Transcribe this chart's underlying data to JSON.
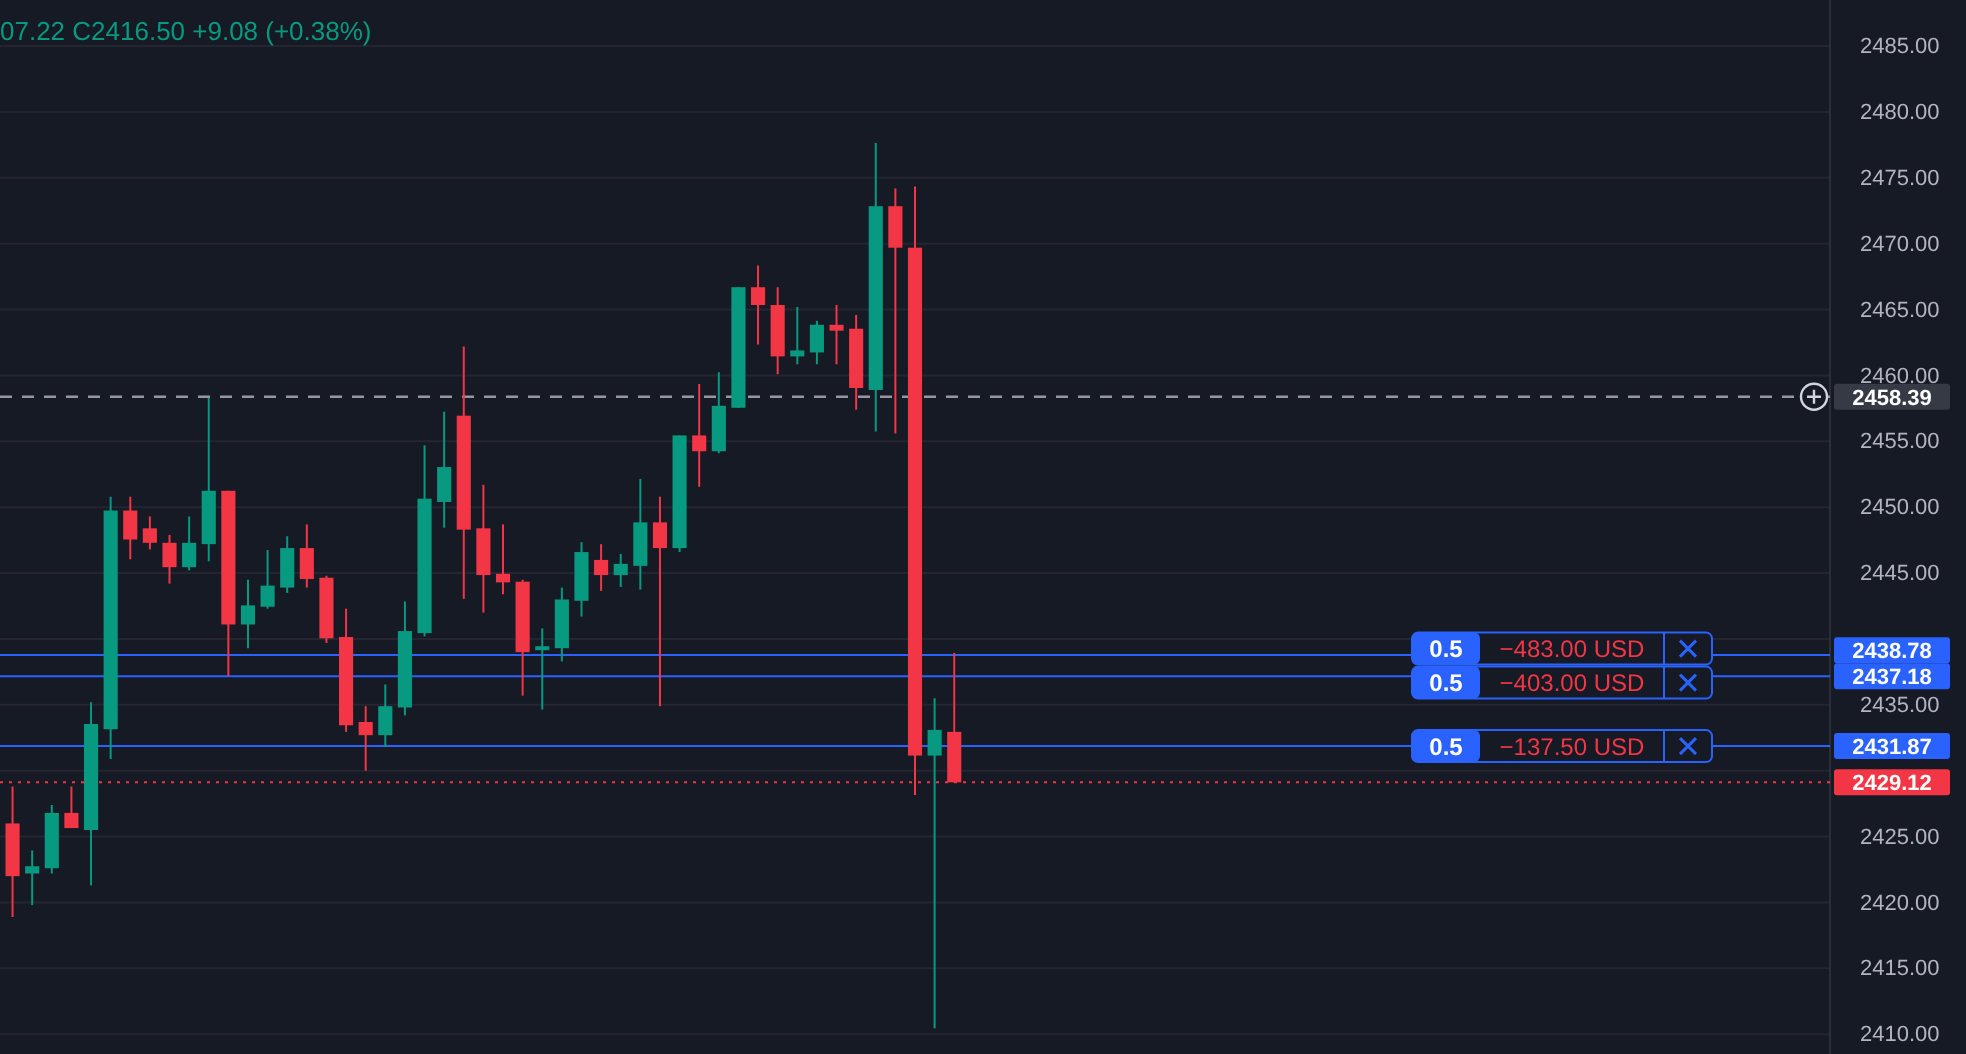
{
  "chart_data": {
    "type": "candlestick",
    "categories": [
      null,
      null,
      null,
      null,
      null,
      null,
      null,
      null,
      null,
      null,
      null,
      null,
      null,
      null,
      null,
      null,
      null,
      null,
      null,
      null,
      null,
      null,
      null,
      null,
      null,
      null,
      null,
      null,
      null,
      null,
      null,
      null,
      null,
      null,
      null,
      null,
      null,
      null,
      null,
      null,
      null,
      null,
      null,
      null,
      null,
      null,
      null,
      null,
      null,
      null,
      null,
      null,
      null,
      null,
      null,
      null,
      null,
      null,
      null,
      null,
      null,
      null,
      null,
      null,
      null,
      null,
      null,
      null,
      null,
      null,
      null,
      null,
      null,
      null,
      null,
      null,
      null,
      null,
      null,
      null,
      null,
      null,
      null,
      null,
      null,
      null,
      null,
      null,
      null,
      null,
      null,
      null,
      null
    ],
    "ohlc": [
      [
        2426.0,
        2428.8,
        2418.9,
        2422.0
      ],
      [
        2422.2,
        2423.95,
        2419.8,
        2422.75
      ],
      [
        2422.6,
        2427.4,
        2422.2,
        2426.8
      ],
      [
        2426.8,
        2428.8,
        2425.65,
        2425.65
      ],
      [
        2425.5,
        2435.2,
        2421.3,
        2433.55
      ],
      [
        2433.15,
        2450.8,
        2430.9,
        2449.75
      ],
      [
        2449.75,
        2450.8,
        2446.05,
        2447.55
      ],
      [
        2448.4,
        2449.3,
        2446.8,
        2447.3
      ],
      [
        2447.3,
        2447.9,
        2444.2,
        2445.45
      ],
      [
        2445.45,
        2449.3,
        2445.2,
        2447.3
      ],
      [
        2447.2,
        2458.3,
        2445.9,
        2451.25
      ],
      [
        2451.25,
        2451.25,
        2437.2,
        2441.1
      ],
      [
        2441.1,
        2444.5,
        2439.3,
        2442.55
      ],
      [
        2442.45,
        2446.75,
        2442.3,
        2444.05
      ],
      [
        2443.9,
        2447.8,
        2443.5,
        2446.9
      ],
      [
        2446.9,
        2448.7,
        2443.9,
        2444.55
      ],
      [
        2444.65,
        2444.8,
        2439.7,
        2440.05
      ],
      [
        2440.15,
        2442.3,
        2432.95,
        2433.45
      ],
      [
        2433.7,
        2434.9,
        2430.0,
        2432.7
      ],
      [
        2432.7,
        2436.55,
        2431.8,
        2434.9
      ],
      [
        2434.8,
        2442.85,
        2434.2,
        2440.6
      ],
      [
        2440.45,
        2454.7,
        2440.2,
        2450.65
      ],
      [
        2450.4,
        2457.25,
        2448.45,
        2453.05
      ],
      [
        2456.95,
        2462.2,
        2443.05,
        2448.3
      ],
      [
        2448.4,
        2451.7,
        2442.0,
        2444.85
      ],
      [
        2444.95,
        2448.7,
        2443.4,
        2444.3
      ],
      [
        2444.35,
        2444.5,
        2435.7,
        2439.0
      ],
      [
        2439.15,
        2440.8,
        2434.65,
        2439.45
      ],
      [
        2439.3,
        2443.9,
        2438.3,
        2443.0
      ],
      [
        2442.9,
        2447.35,
        2441.7,
        2446.6
      ],
      [
        2446.0,
        2447.2,
        2443.65,
        2444.85
      ],
      [
        2444.85,
        2446.45,
        2443.95,
        2445.7
      ],
      [
        2445.55,
        2452.15,
        2443.75,
        2448.85
      ],
      [
        2448.85,
        2450.8,
        2434.9,
        2446.9
      ],
      [
        2446.9,
        2455.45,
        2446.6,
        2455.45
      ],
      [
        2455.45,
        2459.35,
        2451.55,
        2454.25
      ],
      [
        2454.25,
        2460.25,
        2454.1,
        2457.7
      ],
      [
        2457.55,
        2466.7,
        2457.55,
        2466.7
      ],
      [
        2466.7,
        2468.35,
        2462.35,
        2465.35
      ],
      [
        2465.35,
        2466.7,
        2460.1,
        2461.45
      ],
      [
        2461.45,
        2465.2,
        2460.85,
        2461.9
      ],
      [
        2461.75,
        2464.15,
        2460.85,
        2463.85
      ],
      [
        2463.85,
        2465.35,
        2460.85,
        2463.4
      ],
      [
        2463.55,
        2464.6,
        2457.4,
        2459.05
      ],
      [
        2458.9,
        2477.65,
        2455.75,
        2472.85
      ],
      [
        2472.85,
        2474.2,
        2455.6,
        2469.7
      ],
      [
        2469.7,
        2474.35,
        2428.15,
        2431.15
      ],
      [
        2431.15,
        2435.5,
        2410.45,
        2433.1
      ],
      [
        2432.95,
        2438.95,
        2429.12,
        2429.12
      ],
      null,
      null,
      null,
      null,
      null,
      null,
      null,
      null,
      null,
      null,
      null,
      null,
      null,
      null,
      null,
      null,
      null,
      null,
      null,
      null,
      null,
      null,
      null,
      null,
      null,
      null,
      null,
      null,
      null,
      null,
      null,
      null,
      null,
      null,
      null,
      null,
      null,
      null,
      null,
      null,
      null,
      null,
      null,
      null
    ],
    "colors": [
      "#f23645",
      "#089981",
      "#089981",
      "#f23645",
      "#089981",
      "#089981",
      "#f23645",
      "#f23645",
      "#f23645",
      "#089981",
      "#089981",
      "#f23645",
      "#089981",
      "#089981",
      "#089981",
      "#f23645",
      "#f23645",
      "#f23645",
      "#f23645",
      "#089981",
      "#089981",
      "#089981",
      "#089981",
      "#f23645",
      "#f23645",
      "#f23645",
      "#f23645",
      "#089981",
      "#089981",
      "#089981",
      "#f23645",
      "#089981",
      "#089981",
      "#f23645",
      "#089981",
      "#f23645",
      "#089981",
      "#089981",
      "#f23645",
      "#f23645",
      "#089981",
      "#089981",
      "#f23645",
      "#f23645",
      "#089981",
      "#f23645",
      "#f23645",
      "#089981",
      "#f23645",
      null,
      null,
      null,
      null,
      null,
      null,
      null,
      null,
      null,
      null,
      null,
      null,
      null,
      null,
      null,
      null,
      null,
      null,
      null,
      null,
      null,
      null,
      null,
      null,
      null,
      null,
      null,
      null,
      null,
      null,
      null,
      null,
      null,
      null,
      null,
      null,
      null,
      null,
      null,
      null,
      null,
      null,
      null,
      null
    ],
    "ylim": [
      2408.5,
      2488.5
    ],
    "yticks": [
      {
        "value": 2410,
        "label": "2410.00"
      },
      {
        "value": 2415,
        "label": "2415.00"
      },
      {
        "value": 2420,
        "label": "2420.00"
      },
      {
        "value": 2425,
        "label": "2425.00"
      },
      {
        "value": 2430,
        "label": null
      },
      {
        "value": 2435,
        "label": "2435.00"
      },
      {
        "value": 2440,
        "label": null
      },
      {
        "value": 2445,
        "label": "2445.00"
      },
      {
        "value": 2450,
        "label": "2450.00"
      },
      {
        "value": 2455,
        "label": "2455.00"
      },
      {
        "value": 2460,
        "label": "2460.00"
      },
      {
        "value": 2465,
        "label": "2465.00"
      },
      {
        "value": 2470,
        "label": "2470.00"
      },
      {
        "value": 2475,
        "label": "2475.00"
      },
      {
        "value": 2480,
        "label": "2480.00"
      },
      {
        "value": 2485,
        "label": "2485.00"
      }
    ],
    "grid": "y",
    "ref_lines": [
      {
        "axis": "y",
        "value": 2458.39,
        "label": "2458.39",
        "color": "#9598a1",
        "line_style": "dashed"
      },
      {
        "axis": "y",
        "value": 2438.78,
        "label": "2438.78",
        "color": "#2962ff",
        "line_style": "solid"
      },
      {
        "axis": "y",
        "value": 2437.18,
        "label": "2437.18",
        "color": "#2962ff",
        "line_style": "solid"
      },
      {
        "axis": "y",
        "value": 2431.87,
        "label": "2431.87",
        "color": "#2962ff",
        "line_style": "solid"
      },
      {
        "axis": "y",
        "value": 2429.12,
        "label": "2429.12",
        "color": "#f23645",
        "line_style": "dotted"
      }
    ],
    "annotations": [
      "07.22 C2416.50 +9.08 (+0.38%)",
      {
        "text": "0.5",
        "y": 2438.78
      },
      {
        "text": "−483.00 USD",
        "y": 2438.78
      },
      {
        "text": "0.5",
        "y": 2437.18
      },
      {
        "text": "−403.00 USD",
        "y": 2437.18
      },
      {
        "text": "0.5",
        "y": 2431.87
      },
      {
        "text": "−137.50 USD",
        "y": 2431.87
      }
    ]
  }
}
